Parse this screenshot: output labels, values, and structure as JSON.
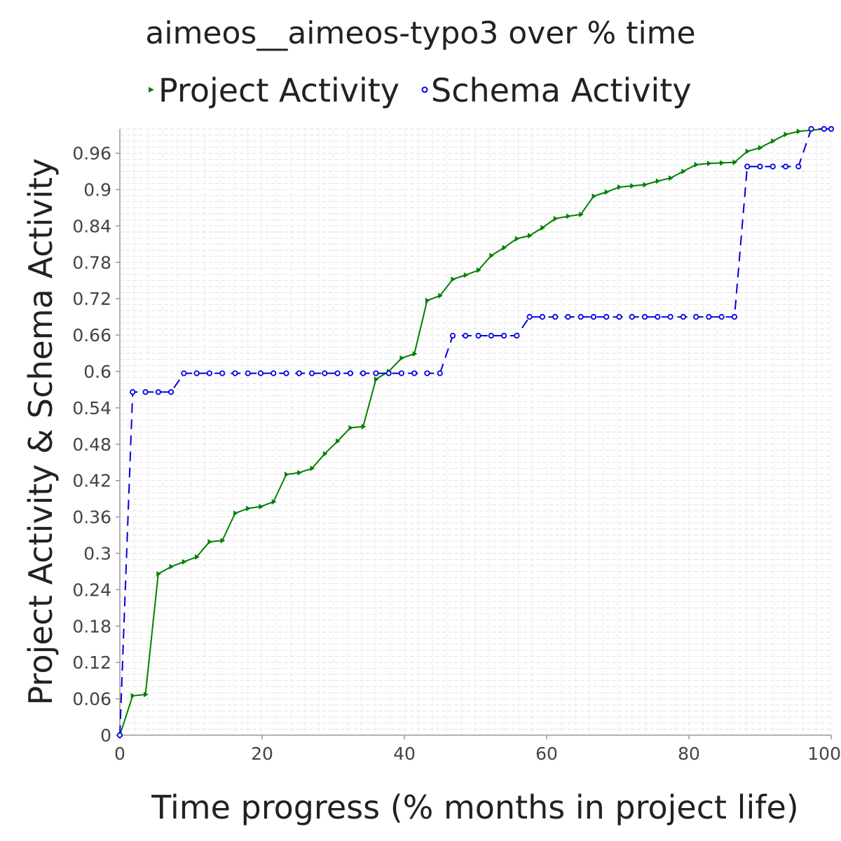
{
  "chart_data": {
    "type": "line",
    "title": "aimeos__aimeos-typo3 over % time",
    "xlabel": "Time progress (% months in project life)",
    "ylabel": "Project Activity & Schema Activity",
    "xlim": [
      0,
      100
    ],
    "ylim": [
      0,
      1.0
    ],
    "x_ticks": [
      "0",
      "20",
      "40",
      "60",
      "80",
      "100"
    ],
    "y_ticks": [
      "0",
      "0.06",
      "0.12",
      "0.18",
      "0.24",
      "0.3",
      "0.36",
      "0.42",
      "0.48",
      "0.54",
      "0.6",
      "0.66",
      "0.72",
      "0.78",
      "0.84",
      "0.9",
      "0.96"
    ],
    "grid": true,
    "legend_position": "top",
    "series": [
      {
        "name": "Project Activity",
        "color": "#008000",
        "marker": "triangle-right",
        "line": "solid",
        "points": [
          [
            0,
            0.0
          ],
          [
            1.8,
            0.065
          ],
          [
            3.6,
            0.067
          ],
          [
            5.4,
            0.266
          ],
          [
            7.2,
            0.278
          ],
          [
            9.0,
            0.286
          ],
          [
            10.8,
            0.294
          ],
          [
            12.6,
            0.319
          ],
          [
            14.4,
            0.321
          ],
          [
            16.2,
            0.366
          ],
          [
            18.0,
            0.374
          ],
          [
            19.8,
            0.377
          ],
          [
            21.6,
            0.385
          ],
          [
            23.4,
            0.43
          ],
          [
            25.2,
            0.433
          ],
          [
            27.0,
            0.44
          ],
          [
            28.8,
            0.464
          ],
          [
            30.6,
            0.485
          ],
          [
            32.4,
            0.507
          ],
          [
            34.2,
            0.509
          ],
          [
            36.0,
            0.587
          ],
          [
            37.8,
            0.6
          ],
          [
            39.6,
            0.622
          ],
          [
            41.4,
            0.629
          ],
          [
            43.2,
            0.717
          ],
          [
            45.0,
            0.725
          ],
          [
            46.8,
            0.752
          ],
          [
            48.6,
            0.759
          ],
          [
            50.4,
            0.767
          ],
          [
            52.2,
            0.791
          ],
          [
            54.0,
            0.804
          ],
          [
            55.8,
            0.819
          ],
          [
            57.6,
            0.824
          ],
          [
            59.4,
            0.837
          ],
          [
            61.2,
            0.852
          ],
          [
            63.0,
            0.856
          ],
          [
            64.8,
            0.859
          ],
          [
            66.6,
            0.889
          ],
          [
            68.4,
            0.896
          ],
          [
            70.2,
            0.904
          ],
          [
            72.0,
            0.906
          ],
          [
            73.8,
            0.908
          ],
          [
            75.6,
            0.914
          ],
          [
            77.4,
            0.919
          ],
          [
            79.2,
            0.93
          ],
          [
            81.0,
            0.941
          ],
          [
            82.8,
            0.943
          ],
          [
            84.6,
            0.944
          ],
          [
            86.4,
            0.945
          ],
          [
            88.2,
            0.963
          ],
          [
            90.0,
            0.969
          ],
          [
            91.8,
            0.98
          ],
          [
            93.6,
            0.991
          ],
          [
            95.4,
            0.996
          ],
          [
            97.2,
            0.998
          ],
          [
            99.0,
            1.0
          ],
          [
            100.0,
            1.0
          ]
        ]
      },
      {
        "name": "Schema Activity",
        "color": "#0000dd",
        "marker": "circle",
        "line": "dashed",
        "points": [
          [
            0,
            0.0
          ],
          [
            1.8,
            0.566
          ],
          [
            3.6,
            0.566
          ],
          [
            5.4,
            0.566
          ],
          [
            7.2,
            0.566
          ],
          [
            9.0,
            0.597
          ],
          [
            10.8,
            0.597
          ],
          [
            12.6,
            0.597
          ],
          [
            14.4,
            0.597
          ],
          [
            16.2,
            0.597
          ],
          [
            18.0,
            0.597
          ],
          [
            19.8,
            0.597
          ],
          [
            21.6,
            0.597
          ],
          [
            23.4,
            0.597
          ],
          [
            25.2,
            0.597
          ],
          [
            27.0,
            0.597
          ],
          [
            28.8,
            0.597
          ],
          [
            30.6,
            0.597
          ],
          [
            32.4,
            0.597
          ],
          [
            34.2,
            0.597
          ],
          [
            36.0,
            0.597
          ],
          [
            37.8,
            0.597
          ],
          [
            39.6,
            0.597
          ],
          [
            41.4,
            0.597
          ],
          [
            43.2,
            0.597
          ],
          [
            45.0,
            0.597
          ],
          [
            46.8,
            0.659
          ],
          [
            48.6,
            0.659
          ],
          [
            50.4,
            0.659
          ],
          [
            52.2,
            0.659
          ],
          [
            54.0,
            0.659
          ],
          [
            55.8,
            0.659
          ],
          [
            57.6,
            0.69
          ],
          [
            59.4,
            0.69
          ],
          [
            61.2,
            0.69
          ],
          [
            63.0,
            0.69
          ],
          [
            64.8,
            0.69
          ],
          [
            66.6,
            0.69
          ],
          [
            68.4,
            0.69
          ],
          [
            70.2,
            0.69
          ],
          [
            72.0,
            0.69
          ],
          [
            73.8,
            0.69
          ],
          [
            75.6,
            0.69
          ],
          [
            77.4,
            0.69
          ],
          [
            79.2,
            0.69
          ],
          [
            81.0,
            0.69
          ],
          [
            82.8,
            0.69
          ],
          [
            84.6,
            0.69
          ],
          [
            86.4,
            0.69
          ],
          [
            88.2,
            0.938
          ],
          [
            90.0,
            0.938
          ],
          [
            91.8,
            0.938
          ],
          [
            93.6,
            0.938
          ],
          [
            95.4,
            0.938
          ],
          [
            97.2,
            1.0
          ],
          [
            99.0,
            1.0
          ],
          [
            100.0,
            1.0
          ]
        ]
      }
    ]
  }
}
